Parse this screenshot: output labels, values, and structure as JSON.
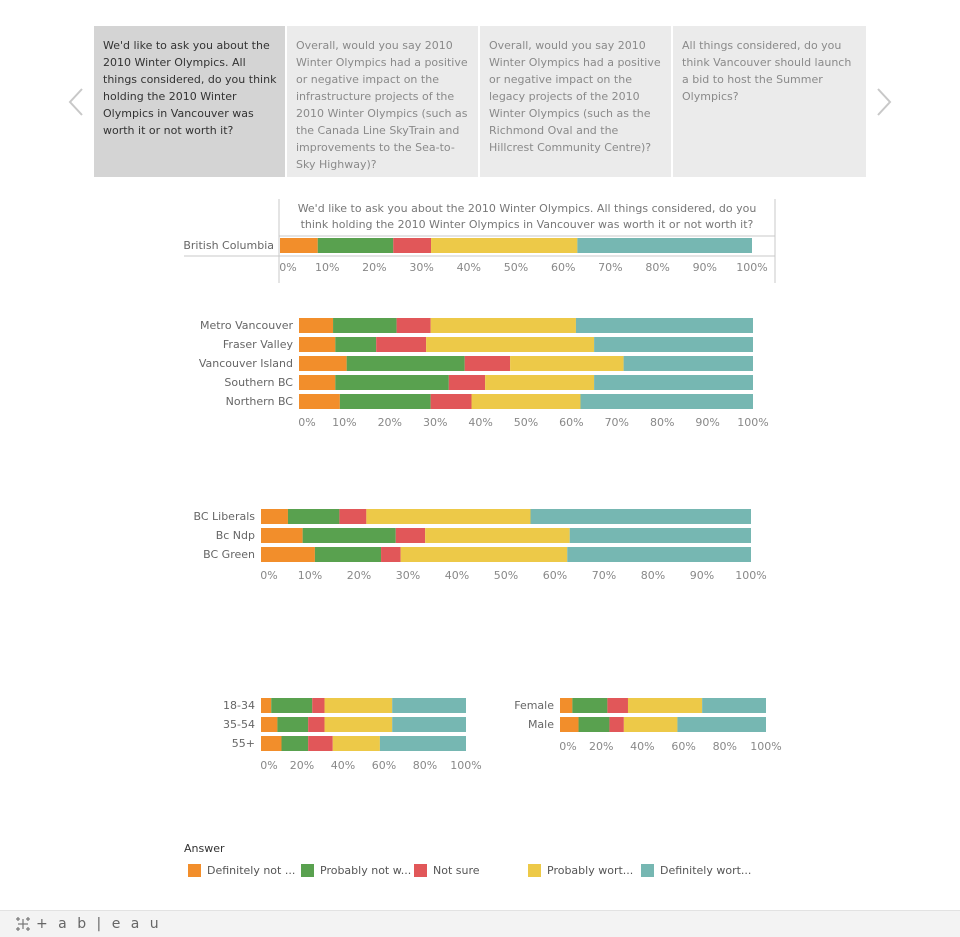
{
  "story": {
    "points": [
      {
        "text": "We'd like to ask you about the 2010 Winter Olympics. All things considered, do you think holding the 2010 Winter Olympics in Vancouver was worth it or not worth it?"
      },
      {
        "text": "Overall, would you say 2010 Winter Olympics had a positive or negative impact on the infrastructure projects of the 2010 Winter Olympics (such as the Canada Line SkyTrain and improvements to the Sea-to-Sky Highway)?"
      },
      {
        "text": "Overall, would you say 2010 Winter Olympics had a positive or negative impact on the legacy projects of the 2010 Winter Olympics (such as the Richmond Oval and the Hillcrest Community Centre)?"
      },
      {
        "text": "All things considered, do you think Vancouver should launch a bid to host the Summer Olympics?"
      }
    ],
    "active_index": 0
  },
  "legend": {
    "title": "Answer",
    "items": [
      {
        "label": "Definitely not ...",
        "color": "#f28e2b"
      },
      {
        "label": "Probably not w...",
        "color": "#59a14f"
      },
      {
        "label": "Not sure",
        "color": "#e15759"
      },
      {
        "label": "Probably wort...",
        "color": "#edc948"
      },
      {
        "label": "Definitely wort...",
        "color": "#76b7b2"
      }
    ]
  },
  "footer": {
    "brand": "+ a b | e a u"
  },
  "chart_data": [
    {
      "type": "bar",
      "orientation": "horizontal",
      "stacked": true,
      "title": "We'd like to ask you about the 2010 Winter Olympics. All things considered, do you think holding the 2010 Winter Olympics in Vancouver was worth it or not worth it?",
      "categories": [
        "British Columbia"
      ],
      "series_order": [
        "Definitely not ...",
        "Probably not w...",
        "Not sure",
        "Probably wort...",
        "Definitely wort..."
      ],
      "values": [
        [
          8,
          16,
          8,
          31,
          37
        ]
      ],
      "xlim": [
        0,
        100
      ],
      "x_ticks": [
        "0%",
        "10%",
        "20%",
        "30%",
        "40%",
        "50%",
        "60%",
        "70%",
        "80%",
        "90%",
        "100%"
      ]
    },
    {
      "type": "bar",
      "orientation": "horizontal",
      "stacked": true,
      "categories": [
        "Metro Vancouver",
        "Fraser Valley",
        "Vancouver Island",
        "Southern BC",
        "Northern BC"
      ],
      "series_order": [
        "Definitely not ...",
        "Probably not w...",
        "Not sure",
        "Probably wort...",
        "Definitely wort..."
      ],
      "values": [
        [
          7.5,
          14,
          7.5,
          32,
          39
        ],
        [
          8,
          9,
          11,
          37,
          35
        ],
        [
          10.5,
          26,
          10,
          25,
          28.5
        ],
        [
          8,
          25,
          8,
          24,
          35
        ],
        [
          9,
          20,
          9,
          24,
          38
        ]
      ],
      "xlim": [
        0,
        100
      ],
      "x_ticks": [
        "0%",
        "10%",
        "20%",
        "30%",
        "40%",
        "50%",
        "60%",
        "70%",
        "80%",
        "90%",
        "100%"
      ]
    },
    {
      "type": "bar",
      "orientation": "horizontal",
      "stacked": true,
      "categories": [
        "BC Liberals",
        "Bc Ndp",
        "BC Green"
      ],
      "series_order": [
        "Definitely not ...",
        "Probably not w...",
        "Not sure",
        "Probably wort...",
        "Definitely wort..."
      ],
      "values": [
        [
          5.5,
          10.5,
          5.5,
          33.5,
          45
        ],
        [
          8.5,
          19,
          6,
          29.5,
          37
        ],
        [
          11,
          13.5,
          4,
          34,
          37.5
        ]
      ],
      "xlim": [
        0,
        100
      ],
      "x_ticks": [
        "0%",
        "10%",
        "20%",
        "30%",
        "40%",
        "50%",
        "60%",
        "70%",
        "80%",
        "90%",
        "100%"
      ]
    },
    {
      "type": "bar",
      "orientation": "horizontal",
      "stacked": true,
      "categories": [
        "18-34",
        "35-54",
        "55+"
      ],
      "series_order": [
        "Definitely not ...",
        "Probably not w...",
        "Not sure",
        "Probably wort...",
        "Definitely wort..."
      ],
      "values": [
        [
          5,
          20,
          6,
          33,
          36
        ],
        [
          8,
          15,
          8,
          33,
          36
        ],
        [
          10,
          13,
          12,
          23,
          42
        ]
      ],
      "xlim": [
        0,
        100
      ],
      "x_ticks": [
        "0%",
        "20%",
        "40%",
        "60%",
        "80%",
        "100%"
      ]
    },
    {
      "type": "bar",
      "orientation": "horizontal",
      "stacked": true,
      "categories": [
        "Female",
        "Male"
      ],
      "series_order": [
        "Definitely not ...",
        "Probably not w...",
        "Not sure",
        "Probably wort...",
        "Definitely wort..."
      ],
      "values": [
        [
          6,
          17,
          10,
          36,
          31
        ],
        [
          9,
          15,
          7,
          26,
          43
        ]
      ],
      "xlim": [
        0,
        100
      ],
      "x_ticks": [
        "0%",
        "20%",
        "40%",
        "60%",
        "80%",
        "100%"
      ]
    }
  ]
}
